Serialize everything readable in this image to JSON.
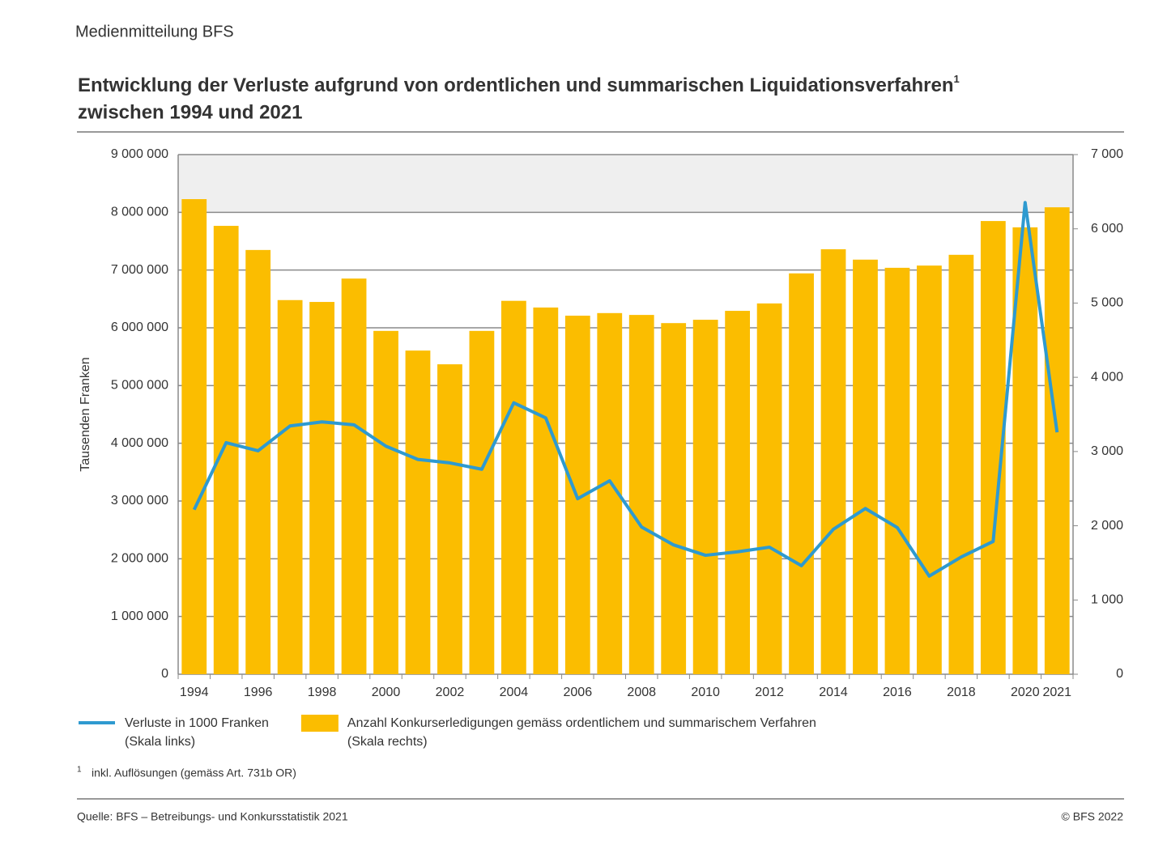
{
  "header": "Medienmitteilung BFS",
  "chart_data": {
    "type": "bar-line",
    "title": "Entwicklung der Verluste aufgrund von ordentlichen und summarischen Liquidationsverfahren",
    "title_note_marker": "1",
    "title_line2": "zwischen 1994 und 2021",
    "y_label": "Tausenden Franken",
    "categories": [
      "1994",
      null,
      "1996",
      null,
      "1998",
      null,
      "2000",
      null,
      "2002",
      null,
      "2004",
      null,
      "2006",
      null,
      "2008",
      null,
      "2010",
      null,
      "2012",
      null,
      "2014",
      null,
      "2016",
      null,
      "2018",
      null,
      "2020",
      "2021"
    ],
    "ylim": [
      0,
      9000000
    ],
    "yticks": [
      0,
      {
        "value": 1000000,
        "label": "1 000 000"
      },
      {
        "value": 2000000,
        "label": "2 000 000"
      },
      {
        "value": 3000000,
        "label": "3 000 000"
      },
      {
        "value": 4000000,
        "label": "4 000 000"
      },
      {
        "value": 5000000,
        "label": "5 000 000"
      },
      {
        "value": 6000000,
        "label": "6 000 000"
      },
      {
        "value": 7000000,
        "label": "7 000 000"
      },
      {
        "value": 8000000,
        "label": "8 000 000"
      },
      {
        "value": 9000000,
        "label": "9 000 000"
      }
    ],
    "y2lim": [
      0,
      7000
    ],
    "y2ticks": [
      0,
      {
        "value": 1000,
        "label": "1 000"
      },
      {
        "value": 2000,
        "label": "2 000"
      },
      {
        "value": 3000,
        "label": "3 000"
      },
      {
        "value": 4000,
        "label": "4 000"
      },
      {
        "value": 5000,
        "label": "5 000"
      },
      {
        "value": 6000,
        "label": "6 000"
      },
      {
        "value": 7000,
        "label": "7 000"
      }
    ],
    "grid": true,
    "series": [
      {
        "name": "Anzahl Konkurserledigungen gemäss ordentlichem und summarischem Verfahren",
        "scale_note": "(Skala rechts)",
        "type": "bar",
        "axis": "y2",
        "color": "#fbbd00",
        "values": [
          6400,
          6040,
          5715,
          5040,
          5015,
          5330,
          4625,
          4360,
          4175,
          4625,
          5030,
          4940,
          4830,
          4865,
          4840,
          4730,
          4775,
          4895,
          4995,
          5400,
          5725,
          5585,
          5475,
          5505,
          5650,
          6105,
          6020,
          6290
        ]
      },
      {
        "name": "Verluste in 1000 Franken",
        "scale_note": "(Skala links)",
        "type": "line",
        "color": "#2e9ad0",
        "values": [
          2850000,
          4010000,
          3870000,
          4300000,
          4370000,
          4320000,
          3950000,
          3720000,
          3660000,
          3550000,
          4700000,
          4440000,
          3040000,
          3350000,
          2550000,
          2240000,
          2060000,
          2120000,
          2200000,
          1880000,
          2510000,
          2870000,
          2540000,
          1700000,
          2030000,
          2300000,
          8170000,
          4190000
        ]
      }
    ]
  },
  "footnote": {
    "marker": "1",
    "text": "inkl. Auflösungen (gemäss Art. 731b OR)"
  },
  "source": "Quelle: BFS – Betreibungs- und Konkursstatistik 2021",
  "copyright": "© BFS 2022"
}
